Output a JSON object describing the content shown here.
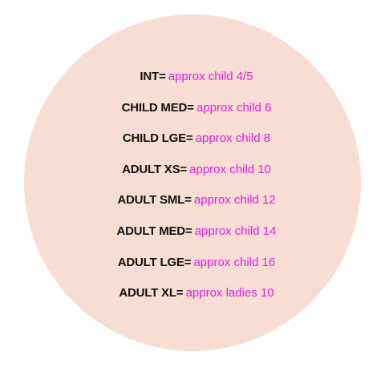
{
  "colors": {
    "background": "#ffffff",
    "circle_fill": "#f8ddd3",
    "label_text": "#111111",
    "approx_text": "#e020e0"
  },
  "size_chart": {
    "rows": [
      {
        "label": "INT",
        "separator": "=",
        "approx": "approx child 4/5"
      },
      {
        "label": "CHILD MED",
        "separator": "=",
        "approx": "approx child 6"
      },
      {
        "label": "CHILD LGE",
        "separator": "=",
        "approx": "approx child 8"
      },
      {
        "label": "ADULT XS",
        "separator": "=",
        "approx": "approx child 10"
      },
      {
        "label": "ADULT SML",
        "separator": "=",
        "approx": "approx child 12"
      },
      {
        "label": "ADULT MED",
        "separator": "=",
        "approx": "approx child 14"
      },
      {
        "label": "ADULT LGE",
        "separator": "=",
        "approx": "approx child 16"
      },
      {
        "label": "ADULT XL",
        "separator": "=",
        "approx": "approx ladies 10"
      }
    ]
  }
}
